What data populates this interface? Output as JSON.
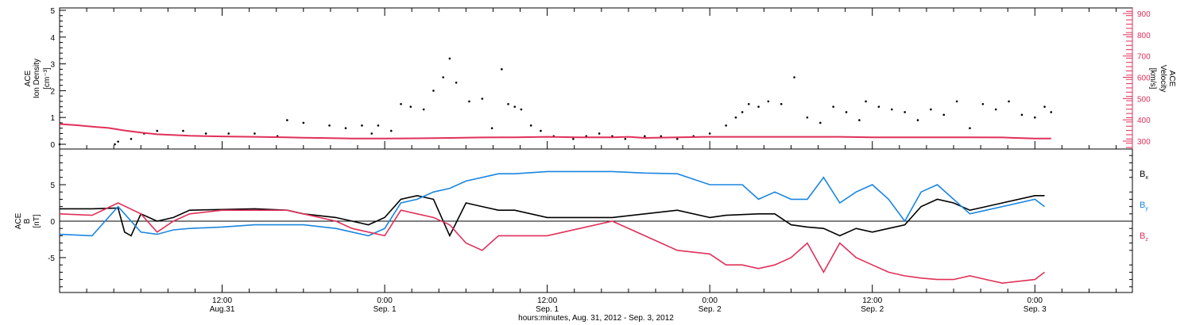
{
  "colors": {
    "black": "#000000",
    "pink": "#e0305a",
    "blue": "#1a86e0"
  },
  "xaxis": {
    "ticks": [
      {
        "t": 1.5,
        "line1": "12:00",
        "line2": "Aug.31"
      },
      {
        "t": 2.0,
        "line1": "0:00",
        "line2": "Sep. 1"
      },
      {
        "t": 2.5,
        "line1": "12:00",
        "line2": "Sep. 1"
      },
      {
        "t": 3.0,
        "line1": "0:00",
        "line2": "Sep. 2"
      },
      {
        "t": 3.5,
        "line1": "12:00",
        "line2": "Sep. 2"
      },
      {
        "t": 4.0,
        "line1": "0:00",
        "line2": "Sep. 3"
      }
    ],
    "label": "hours:minutes, Aug. 31, 2012 - Sep.  3, 2012"
  },
  "top_panel": {
    "left_label_line1": "ACE",
    "left_label_line2": "Ion Density",
    "left_label_units": "[cm⁻³]",
    "right_label_line1": "ACE",
    "right_label_line2": "Velocity",
    "right_label_units": "[km/s]",
    "left_ticks": [
      "0",
      "1",
      "2",
      "3",
      "4",
      "5"
    ],
    "right_ticks": [
      "300",
      "400",
      "500",
      "600",
      "700",
      "800",
      "900"
    ]
  },
  "bottom_panel": {
    "left_label_line1": "ACE",
    "left_label_line2": "B",
    "left_label_units": "[nT]",
    "left_ticks": [
      "-5",
      "0",
      "5"
    ],
    "legend": [
      {
        "label": "B",
        "sub": "x",
        "color": "#000000"
      },
      {
        "label": "B",
        "sub": "y",
        "color": "#1a86e0"
      },
      {
        "label": "B",
        "sub": "z",
        "color": "#e0305a"
      }
    ]
  },
  "chart_data": [
    {
      "type": "scatter",
      "panel": "top",
      "x_units": "days from Aug. 31 00:00 UT (ticks labeled as above)",
      "xlim": [
        1.0,
        4.3
      ],
      "ylabel": "ACE Ion Density [cm⁻³]",
      "ylim": [
        -0.3,
        5.1
      ],
      "y2label": "ACE Velocity [km/s]",
      "y2lim": [
        260,
        930
      ],
      "series": [
        {
          "color": "#000000",
          "axis": "left",
          "x": [
            1.0,
            1.17,
            1.18,
            1.22,
            1.26,
            1.3,
            1.38,
            1.45,
            1.52,
            1.6,
            1.67,
            1.7,
            1.75,
            1.83,
            1.88,
            1.93,
            1.96,
            1.98,
            2.02,
            2.05,
            2.08,
            2.12,
            2.15,
            2.18,
            2.2,
            2.22,
            2.26,
            2.3,
            2.33,
            2.36,
            2.38,
            2.4,
            2.42,
            2.45,
            2.48,
            2.52,
            2.58,
            2.62,
            2.66,
            2.7,
            2.74,
            2.8,
            2.85,
            2.9,
            2.95,
            3.0,
            3.05,
            3.08,
            3.1,
            3.12,
            3.15,
            3.18,
            3.22,
            3.26,
            3.3,
            3.34,
            3.38,
            3.42,
            3.46,
            3.48,
            3.52,
            3.56,
            3.6,
            3.64,
            3.68,
            3.72,
            3.76,
            3.8,
            3.84,
            3.88,
            3.92,
            3.96,
            4.0,
            4.03,
            4.05
          ],
          "y": [
            0.0,
            0.0,
            0.1,
            0.2,
            0.4,
            0.5,
            0.5,
            0.4,
            0.4,
            0.4,
            0.3,
            0.9,
            0.8,
            0.7,
            0.6,
            0.7,
            0.4,
            0.7,
            0.5,
            1.5,
            1.4,
            1.3,
            2.0,
            2.5,
            3.2,
            2.3,
            1.6,
            1.7,
            0.6,
            2.8,
            1.5,
            1.4,
            1.3,
            0.7,
            0.5,
            0.3,
            0.2,
            0.3,
            0.4,
            0.3,
            0.2,
            0.3,
            0.3,
            0.2,
            0.3,
            0.4,
            0.7,
            1.0,
            1.2,
            1.5,
            1.4,
            1.6,
            1.5,
            2.5,
            1.0,
            0.8,
            1.4,
            1.2,
            0.9,
            1.6,
            1.4,
            1.3,
            1.2,
            0.9,
            1.3,
            1.1,
            1.6,
            0.6,
            1.5,
            1.3,
            1.6,
            1.1,
            1.0,
            1.4,
            1.2
          ]
        },
        {
          "color": "#e0305a",
          "axis": "right",
          "x": [
            1.0,
            1.05,
            1.1,
            1.15,
            1.2,
            1.25,
            1.3,
            1.4,
            1.5,
            1.6,
            1.7,
            1.75,
            1.8,
            1.9,
            2.0,
            2.1,
            2.2,
            2.3,
            2.4,
            2.5,
            2.6,
            2.7,
            2.75,
            2.8,
            2.9,
            3.0,
            3.1,
            3.2,
            3.3,
            3.4,
            3.5,
            3.6,
            3.7,
            3.8,
            3.9,
            4.0,
            4.05
          ],
          "y": [
            380,
            375,
            368,
            362,
            350,
            340,
            332,
            325,
            322,
            320,
            318,
            316,
            315,
            312,
            312,
            313,
            315,
            317,
            318,
            320,
            318,
            318,
            320,
            315,
            318,
            320,
            320,
            320,
            320,
            320,
            318,
            318,
            318,
            318,
            317,
            312,
            312
          ]
        }
      ]
    },
    {
      "type": "line",
      "panel": "bottom",
      "x_units": "days from Aug. 31 00:00 UT (ticks labeled as above)",
      "xlim": [
        1.0,
        4.3
      ],
      "ylabel": "ACE B [nT]",
      "ylim": [
        -10,
        10
      ],
      "series": [
        {
          "name": "Bx",
          "color": "#000000",
          "x": [
            1.0,
            1.1,
            1.18,
            1.2,
            1.22,
            1.25,
            1.3,
            1.35,
            1.4,
            1.5,
            1.6,
            1.7,
            1.75,
            1.85,
            1.9,
            1.95,
            2.0,
            2.05,
            2.1,
            2.15,
            2.2,
            2.25,
            2.3,
            2.35,
            2.4,
            2.5,
            2.6,
            2.7,
            2.8,
            2.9,
            3.0,
            3.05,
            3.15,
            3.2,
            3.25,
            3.3,
            3.35,
            3.4,
            3.45,
            3.5,
            3.55,
            3.6,
            3.65,
            3.7,
            3.75,
            3.8,
            3.85,
            3.9,
            4.0,
            4.03
          ],
          "y": [
            1.7,
            1.7,
            1.8,
            -1.5,
            -2.0,
            1.0,
            0.0,
            0.5,
            1.5,
            1.6,
            1.7,
            1.5,
            1.0,
            0.5,
            0.0,
            -0.5,
            0.5,
            3.0,
            3.5,
            3.0,
            -2.0,
            2.5,
            2.0,
            1.5,
            1.5,
            0.5,
            0.5,
            0.5,
            1.0,
            1.5,
            0.5,
            0.8,
            1.0,
            1.0,
            -0.5,
            -0.8,
            -1.0,
            -2.0,
            -1.0,
            -1.5,
            -1.0,
            -0.5,
            2.0,
            3.0,
            2.5,
            1.5,
            2.0,
            2.5,
            3.5,
            3.5
          ]
        },
        {
          "name": "By",
          "color": "#1a86e0",
          "x": [
            1.0,
            1.1,
            1.18,
            1.25,
            1.3,
            1.35,
            1.4,
            1.5,
            1.6,
            1.7,
            1.75,
            1.85,
            1.9,
            1.95,
            2.0,
            2.05,
            2.1,
            2.15,
            2.2,
            2.25,
            2.3,
            2.35,
            2.4,
            2.5,
            2.6,
            2.7,
            2.8,
            2.9,
            3.0,
            3.05,
            3.1,
            3.15,
            3.2,
            3.25,
            3.3,
            3.35,
            3.4,
            3.45,
            3.5,
            3.55,
            3.6,
            3.65,
            3.7,
            3.75,
            3.8,
            3.85,
            3.9,
            4.0,
            4.03
          ],
          "y": [
            -1.8,
            -2.0,
            2.0,
            -1.5,
            -1.8,
            -1.2,
            -1.0,
            -0.8,
            -0.5,
            -0.5,
            -0.5,
            -1.0,
            -1.5,
            -2.0,
            -1.0,
            2.5,
            3.0,
            4.0,
            4.5,
            5.5,
            6.0,
            6.5,
            6.5,
            6.8,
            6.8,
            6.8,
            6.6,
            6.5,
            5.0,
            5.0,
            5.0,
            3.0,
            4.0,
            3.0,
            3.0,
            6.0,
            2.5,
            4.0,
            5.0,
            3.0,
            0.0,
            4.0,
            5.0,
            3.0,
            1.0,
            1.5,
            2.0,
            3.0,
            2.0
          ]
        },
        {
          "name": "Bz",
          "color": "#e0305a",
          "x": [
            1.0,
            1.1,
            1.18,
            1.25,
            1.3,
            1.35,
            1.4,
            1.5,
            1.6,
            1.7,
            1.75,
            1.85,
            1.9,
            1.95,
            2.0,
            2.05,
            2.1,
            2.15,
            2.2,
            2.25,
            2.3,
            2.35,
            2.4,
            2.5,
            2.6,
            2.7,
            2.8,
            2.9,
            3.0,
            3.05,
            3.1,
            3.15,
            3.2,
            3.25,
            3.3,
            3.35,
            3.4,
            3.45,
            3.5,
            3.55,
            3.6,
            3.65,
            3.7,
            3.75,
            3.8,
            3.85,
            3.9,
            4.0,
            4.03
          ],
          "y": [
            1.0,
            0.8,
            2.5,
            1.0,
            -1.5,
            0.0,
            1.0,
            1.5,
            1.5,
            1.5,
            1.0,
            0.0,
            -1.0,
            -1.5,
            -2.0,
            1.5,
            1.0,
            0.5,
            -0.5,
            -3.0,
            -4.0,
            -2.0,
            -2.0,
            -2.0,
            -1.0,
            0.0,
            -2.0,
            -4.0,
            -4.5,
            -6.0,
            -6.0,
            -6.5,
            -6.0,
            -5.0,
            -3.0,
            -7.0,
            -3.0,
            -5.0,
            -6.0,
            -7.0,
            -7.5,
            -7.8,
            -8.0,
            -8.0,
            -7.5,
            -8.0,
            -8.5,
            -8.0,
            -7.0
          ]
        }
      ]
    }
  ]
}
